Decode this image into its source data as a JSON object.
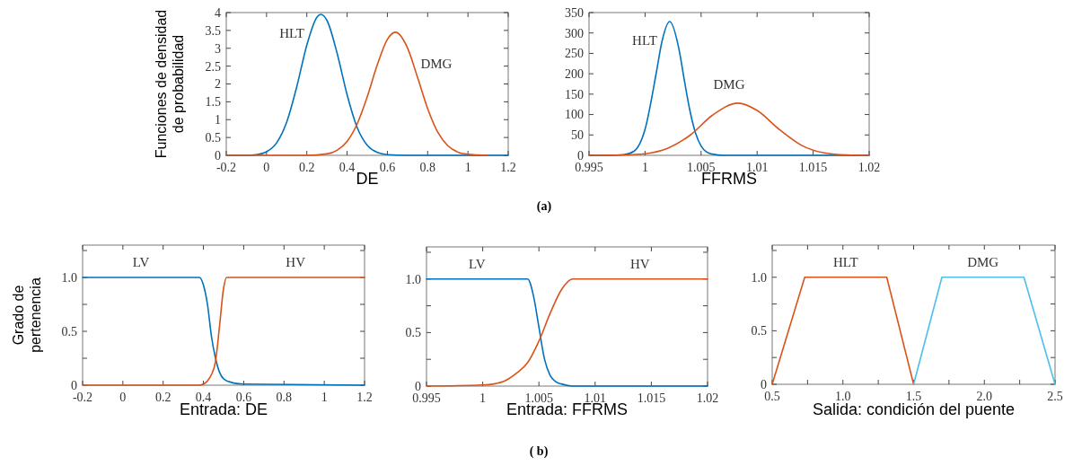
{
  "chart_data": [
    {
      "type": "line",
      "ylabel": "Funciones de densidad\nde probabilidad",
      "xlabel": "DE",
      "xlim": [
        -0.2,
        1.2
      ],
      "ylim": [
        0,
        4
      ],
      "xticks": [
        -0.2,
        0,
        0.2,
        0.4,
        0.6,
        0.8,
        1,
        1.2
      ],
      "yticks": [
        0,
        0.5,
        1,
        1.5,
        2,
        2.5,
        3,
        3.5,
        4
      ],
      "annotations": [
        "(a)"
      ],
      "series": [
        {
          "name": "HLT",
          "color": "#0072bd",
          "x": [
            -0.2,
            -0.1,
            -0.05,
            0,
            0.05,
            0.1,
            0.15,
            0.2,
            0.25,
            0.27,
            0.3,
            0.35,
            0.4,
            0.45,
            0.5,
            0.55,
            0.6,
            0.7,
            0.8,
            1.0,
            1.2
          ],
          "values": [
            0,
            0,
            0.02,
            0.1,
            0.35,
            0.93,
            1.92,
            3.09,
            3.87,
            3.95,
            3.78,
            2.87,
            1.7,
            0.78,
            0.28,
            0.08,
            0.02,
            0,
            0,
            0,
            0
          ]
        },
        {
          "name": "DMG",
          "color": "#d95319",
          "x": [
            -0.2,
            0,
            0.2,
            0.3,
            0.35,
            0.4,
            0.45,
            0.5,
            0.55,
            0.6,
            0.64,
            0.7,
            0.75,
            0.8,
            0.85,
            0.9,
            0.95,
            1.0,
            1.05,
            1.1
          ],
          "values": [
            0,
            0,
            0,
            0.04,
            0.14,
            0.39,
            0.88,
            1.64,
            2.54,
            3.25,
            3.45,
            3.01,
            2.18,
            1.31,
            0.65,
            0.27,
            0.09,
            0.03,
            0.01,
            0
          ]
        }
      ]
    },
    {
      "type": "line",
      "xlabel": "FFRMS",
      "xlim": [
        0.995,
        1.02
      ],
      "ylim": [
        0,
        350
      ],
      "xticks": [
        0.995,
        1,
        1.005,
        1.01,
        1.015,
        1.02
      ],
      "yticks": [
        0,
        50,
        100,
        150,
        200,
        250,
        300,
        350
      ],
      "series": [
        {
          "name": "HLT",
          "color": "#0072bd",
          "x": [
            0.995,
            0.997,
            0.998,
            0.999,
            1.0,
            1.001,
            1.0015,
            1.0022,
            1.003,
            1.0035,
            1.004,
            1.0045,
            1.005,
            1.0055,
            1.006,
            1.007,
            1.01,
            1.02
          ],
          "values": [
            0,
            0,
            1,
            10,
            64,
            202,
            278,
            328,
            264,
            185,
            110,
            55,
            23,
            8,
            3,
            0,
            0,
            0
          ]
        },
        {
          "name": "DMG",
          "color": "#d95319",
          "x": [
            0.995,
            0.998,
            1.0,
            1.002,
            1.004,
            1.006,
            1.0083,
            1.01,
            1.012,
            1.014,
            1.016,
            1.018,
            1.02
          ],
          "values": [
            0,
            1,
            4,
            17,
            49,
            98,
            128,
            110,
            63,
            24,
            6,
            1,
            0
          ]
        }
      ]
    },
    {
      "type": "line",
      "ylabel": "Grado de\npertenencia",
      "xlabel": "Entrada: DE",
      "xlim": [
        -0.2,
        1.2
      ],
      "ylim": [
        0,
        1.3
      ],
      "xticks": [
        -0.2,
        0,
        0.2,
        0.4,
        0.6,
        0.8,
        1,
        1.2
      ],
      "yticks": [
        0,
        {
          "value": 0.25,
          "label": null
        },
        {
          "value": 0.5,
          "label": "0.5"
        },
        {
          "value": 0.75,
          "label": null
        },
        {
          "value": 1,
          "label": "1.0"
        },
        {
          "value": 1.25,
          "label": null
        }
      ],
      "series": [
        {
          "name": "LV",
          "color": "#0072bd",
          "x": [
            -0.2,
            0.38,
            0.4,
            0.42,
            0.44,
            0.46,
            0.48,
            0.5,
            0.55,
            0.6,
            1.2
          ],
          "values": [
            1,
            1,
            0.93,
            0.75,
            0.45,
            0.25,
            0.12,
            0.06,
            0.02,
            0.01,
            0
          ]
        },
        {
          "name": "HV",
          "color": "#d95319",
          "x": [
            -0.2,
            0.38,
            0.4,
            0.42,
            0.44,
            0.46,
            0.48,
            0.5,
            0.515,
            1.2
          ],
          "values": [
            0,
            0,
            0.01,
            0.04,
            0.1,
            0.22,
            0.55,
            0.9,
            1,
            1
          ]
        }
      ]
    },
    {
      "type": "line",
      "xlabel": "Entrada: FFRMS",
      "xlim": [
        0.995,
        1.02
      ],
      "ylim": [
        0,
        1.3
      ],
      "xticks": [
        0.995,
        1,
        1.005,
        1.01,
        1.015,
        1.02
      ],
      "yticks": [
        0,
        {
          "value": 0.25,
          "label": null
        },
        {
          "value": 0.5,
          "label": "0.5"
        },
        {
          "value": 0.75,
          "label": null
        },
        {
          "value": 1,
          "label": "1.0"
        },
        {
          "value": 1.25,
          "label": null
        }
      ],
      "annotations": [
        "( b)"
      ],
      "series": [
        {
          "name": "LV",
          "color": "#0072bd",
          "x": [
            0.995,
            1.004,
            1.0045,
            1.005,
            1.0055,
            1.006,
            1.0065,
            1.007,
            1.008,
            1.02
          ],
          "values": [
            1,
            1,
            0.85,
            0.55,
            0.25,
            0.1,
            0.04,
            0.02,
            0,
            0
          ]
        },
        {
          "name": "HV",
          "color": "#d95319",
          "x": [
            0.995,
            1.0,
            1.001,
            1.002,
            1.003,
            1.004,
            1.005,
            1.006,
            1.007,
            1.008,
            1.02
          ],
          "values": [
            0,
            0.01,
            0.02,
            0.05,
            0.12,
            0.22,
            0.42,
            0.68,
            0.9,
            1,
            1
          ]
        }
      ]
    },
    {
      "type": "line",
      "xlabel": "Salida: condición del puente",
      "xlim": [
        0.5,
        2.5
      ],
      "ylim": [
        0,
        1.3
      ],
      "xticks": [
        0.5,
        {
          "value": 0.75,
          "label": null
        },
        {
          "value": 1,
          "label": "1.0"
        },
        {
          "value": 1.25,
          "label": null
        },
        1.5,
        {
          "value": 1.75,
          "label": null
        },
        {
          "value": 2,
          "label": "2.0"
        },
        {
          "value": 2.25,
          "label": null
        },
        2.5
      ],
      "yticks": [
        0,
        {
          "value": 0.25,
          "label": null
        },
        {
          "value": 0.5,
          "label": "0.5"
        },
        {
          "value": 0.75,
          "label": null
        },
        {
          "value": 1,
          "label": "1.0"
        },
        {
          "value": 1.25,
          "label": null
        }
      ],
      "series": [
        {
          "name": "HLT",
          "color": "#d95319",
          "x": [
            0.5,
            0.73,
            1.31,
            1.5
          ],
          "values": [
            0,
            1,
            1,
            0
          ]
        },
        {
          "name": "DMG",
          "color": "#4dbeee",
          "x": [
            1.5,
            1.7,
            2.28,
            2.5
          ],
          "values": [
            0,
            1,
            1,
            0
          ]
        }
      ]
    }
  ]
}
